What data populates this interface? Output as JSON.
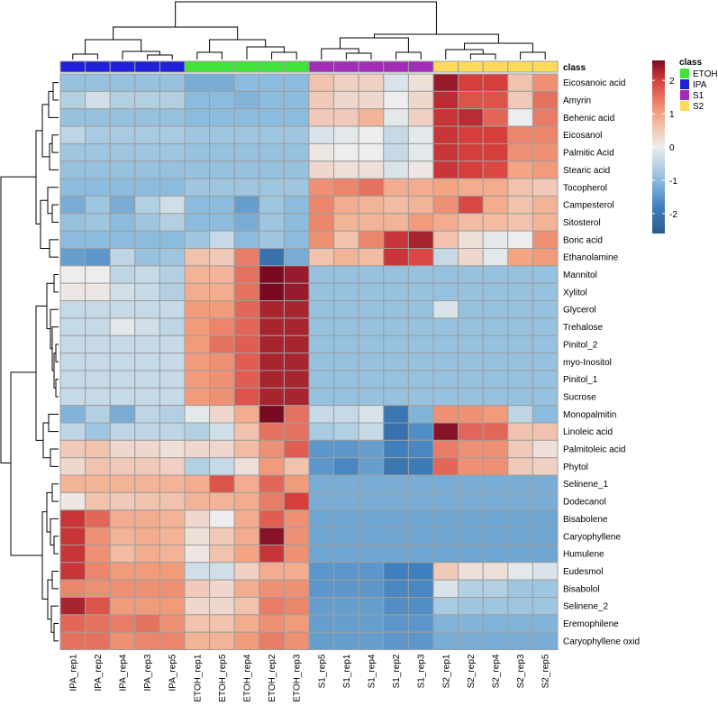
{
  "chart_data": {
    "type": "heatmap",
    "title": "",
    "columns": [
      "IPA_rep1",
      "IPA_rep2",
      "IPA_rep4",
      "IPA_rep3",
      "IPA_rep5",
      "ETOH_rep1",
      "ETOH_rep5",
      "ETOH_rep4",
      "ETOH_rep2",
      "ETOH_rep3",
      "S1_rep5",
      "S1_rep1",
      "S1_rep4",
      "S1_rep2",
      "S1_rep3",
      "S2_rep1",
      "S2_rep2",
      "S2_rep4",
      "S2_rep3",
      "S2_rep5"
    ],
    "rows": [
      "Eicosanoic acid",
      "Amyrin",
      "Behenic acid",
      "Eicosanol",
      "Palmitic Acid",
      "Stearic acid",
      "Tocopherol",
      "Campesterol",
      "Sitosterol",
      "Boric acid",
      "Ethanolamine",
      "Mannitol",
      "Xylitol",
      "Glycerol",
      "Trehalose",
      "Pinitol_2",
      "myo-Inositol",
      "Pinitol_1",
      "Sucrose",
      "Monopalmitin",
      "Linoleic acid",
      "Palmitoleic acid",
      "Phytol",
      "Selinene_1",
      "Dodecanol",
      "Bisabolene",
      "Caryophyllene",
      "Humulene",
      "Eudesmol",
      "Bisabolol",
      "Selinene_2",
      "Eremophilene",
      "Caryophyllene oxid"
    ],
    "column_class": [
      "IPA",
      "IPA",
      "IPA",
      "IPA",
      "IPA",
      "ETOH",
      "ETOH",
      "ETOH",
      "ETOH",
      "ETOH",
      "S1",
      "S1",
      "S1",
      "S1",
      "S1",
      "S2",
      "S2",
      "S2",
      "S2",
      "S2"
    ],
    "class_annotation_label": "class",
    "class_legend": {
      "title": "class",
      "items": [
        {
          "name": "ETOH",
          "color": "#3FE33A"
        },
        {
          "name": "IPA",
          "color": "#2020D8"
        },
        {
          "name": "S1",
          "color": "#A22CB8"
        },
        {
          "name": "S2",
          "color": "#FDDA5C"
        }
      ]
    },
    "color_scale": {
      "ticks": [
        2,
        1,
        0,
        -1,
        -2
      ],
      "range": [
        -2.6,
        2.6
      ],
      "low_color": "#2B5A8E",
      "mid_color": "#EDEDED",
      "high_color": "#7A0A22"
    },
    "values": [
      [
        -0.9,
        -0.9,
        -0.9,
        -0.9,
        -0.9,
        -1.2,
        -1.2,
        -1.0,
        -1.0,
        -1.0,
        0.6,
        0.4,
        0.4,
        -0.2,
        0.2,
        2.4,
        2.0,
        2.0,
        0.6,
        1.2
      ],
      [
        -0.6,
        -0.3,
        -0.6,
        -0.6,
        -0.6,
        -1.0,
        -1.0,
        -1.1,
        -1.0,
        -1.0,
        0.5,
        0.3,
        0.3,
        0.0,
        0.3,
        2.2,
        1.8,
        1.8,
        0.5,
        1.5
      ],
      [
        -0.9,
        -0.9,
        -0.9,
        -0.9,
        -0.9,
        -1.0,
        -1.0,
        -1.0,
        -1.0,
        -1.0,
        0.5,
        0.5,
        0.8,
        -0.1,
        0.4,
        2.1,
        2.2,
        1.6,
        0.0,
        1.4
      ],
      [
        -0.5,
        -0.7,
        -0.7,
        -0.7,
        -0.7,
        -0.8,
        -0.8,
        -0.8,
        -0.8,
        -0.8,
        -0.2,
        -0.1,
        0.0,
        -0.4,
        -0.1,
        2.1,
        2.0,
        2.0,
        1.3,
        1.3
      ],
      [
        -0.8,
        -0.8,
        -0.8,
        -0.8,
        -0.8,
        -0.9,
        -0.9,
        -0.9,
        -0.9,
        -0.9,
        0.1,
        0.0,
        0.0,
        -0.4,
        -0.1,
        2.1,
        2.0,
        2.0,
        1.2,
        1.2
      ],
      [
        -0.9,
        -0.9,
        -0.9,
        -0.9,
        -0.9,
        -0.9,
        -0.9,
        -0.9,
        -0.9,
        -0.9,
        0.3,
        0.2,
        0.2,
        -0.2,
        0.1,
        2.1,
        2.0,
        1.9,
        1.0,
        1.1
      ],
      [
        -1.0,
        -1.0,
        -1.0,
        -1.0,
        -1.0,
        -0.8,
        -0.8,
        -0.8,
        -0.8,
        -0.8,
        1.2,
        1.3,
        1.5,
        0.9,
        0.9,
        1.0,
        0.9,
        0.9,
        0.6,
        0.5
      ],
      [
        -1.2,
        -0.8,
        -1.2,
        -0.6,
        -0.3,
        -1.0,
        -1.0,
        -1.4,
        -0.8,
        -1.0,
        1.3,
        0.9,
        0.8,
        0.7,
        0.8,
        1.2,
        1.9,
        0.9,
        0.6,
        0.8
      ],
      [
        -0.9,
        -0.8,
        -1.0,
        -0.8,
        -0.6,
        -1.0,
        -1.0,
        -1.2,
        -0.8,
        -1.0,
        1.3,
        0.8,
        0.8,
        0.8,
        1.1,
        0.9,
        0.7,
        0.7,
        0.6,
        0.8
      ],
      [
        -1.0,
        -1.0,
        -1.0,
        -1.0,
        -1.0,
        -0.8,
        -0.4,
        -1.0,
        -0.8,
        -1.0,
        1.2,
        0.6,
        1.3,
        2.1,
        2.3,
        0.6,
        0.2,
        -0.1,
        0.0,
        1.2
      ],
      [
        -1.4,
        -1.5,
        -0.5,
        -0.9,
        -0.8,
        0.6,
        0.5,
        1.4,
        -2.1,
        -1.2,
        0.6,
        0.8,
        0.7,
        2.1,
        1.9,
        -0.4,
        0.3,
        -0.1,
        1.0,
        1.1
      ],
      [
        0.0,
        0.0,
        -0.5,
        -0.4,
        -0.6,
        0.8,
        0.8,
        1.5,
        2.6,
        2.4,
        -0.9,
        -0.9,
        -0.9,
        -0.9,
        -0.9,
        -0.9,
        -0.9,
        -0.9,
        -0.9,
        -0.9
      ],
      [
        0.1,
        0.1,
        -0.3,
        -0.4,
        -0.6,
        0.9,
        0.9,
        1.5,
        2.6,
        2.4,
        -0.9,
        -0.9,
        -0.9,
        -0.9,
        -0.9,
        -0.9,
        -0.9,
        -0.9,
        -0.9,
        -0.9
      ],
      [
        -0.4,
        -0.4,
        -0.4,
        -0.4,
        -0.4,
        1.1,
        1.1,
        1.6,
        2.3,
        2.3,
        -0.9,
        -0.9,
        -0.9,
        -0.9,
        -0.9,
        -0.2,
        -0.9,
        -0.9,
        -0.9,
        -0.9
      ],
      [
        -0.4,
        -0.4,
        -0.1,
        -0.3,
        -0.5,
        1.1,
        1.3,
        1.6,
        2.3,
        2.3,
        -0.9,
        -0.9,
        -0.9,
        -0.9,
        -0.9,
        -0.9,
        -0.9,
        -0.9,
        -0.9,
        -0.9
      ],
      [
        -0.4,
        -0.4,
        -0.4,
        -0.4,
        -0.4,
        1.1,
        1.5,
        1.7,
        2.3,
        2.3,
        -0.9,
        -0.9,
        -0.9,
        -0.9,
        -0.9,
        -0.9,
        -0.9,
        -0.9,
        -0.9,
        -0.9
      ],
      [
        -0.4,
        -0.4,
        -0.4,
        -0.4,
        -0.4,
        1.1,
        1.2,
        1.7,
        2.3,
        2.3,
        -0.9,
        -0.9,
        -0.9,
        -0.9,
        -0.9,
        -0.9,
        -0.9,
        -0.9,
        -0.9,
        -0.9
      ],
      [
        -0.4,
        -0.4,
        -0.4,
        -0.4,
        -0.4,
        1.1,
        1.2,
        1.7,
        2.3,
        2.3,
        -0.9,
        -0.9,
        -0.9,
        -0.9,
        -0.9,
        -0.9,
        -0.9,
        -0.9,
        -0.9,
        -0.9
      ],
      [
        -0.4,
        -0.4,
        -0.4,
        -0.4,
        -0.4,
        1.1,
        1.2,
        1.8,
        2.3,
        2.3,
        -0.9,
        -0.9,
        -0.9,
        -0.9,
        -0.9,
        -0.9,
        -0.9,
        -0.9,
        -0.9,
        -0.9
      ],
      [
        -1.1,
        -0.6,
        -1.2,
        -0.5,
        -0.6,
        -0.1,
        0.3,
        0.9,
        2.6,
        1.5,
        -0.4,
        -0.4,
        -0.2,
        -2.0,
        -1.1,
        1.2,
        1.2,
        1.1,
        -0.5,
        -1.0
      ],
      [
        -0.5,
        -0.8,
        -0.5,
        -0.5,
        -0.5,
        -0.6,
        -0.3,
        0.6,
        1.5,
        1.5,
        -0.7,
        -0.6,
        -0.4,
        -2.1,
        -1.6,
        2.5,
        1.6,
        1.6,
        0.6,
        0.6
      ],
      [
        0.5,
        0.6,
        0.3,
        0.3,
        0.2,
        0.3,
        0.3,
        0.7,
        1.2,
        1.7,
        -1.5,
        -1.5,
        -1.4,
        -1.8,
        -1.7,
        1.4,
        1.2,
        1.2,
        0.5,
        0.2
      ],
      [
        0.3,
        0.6,
        0.5,
        0.5,
        0.4,
        -0.6,
        -0.4,
        0.2,
        1.1,
        0.6,
        -1.5,
        -1.7,
        -1.4,
        -2.0,
        -1.9,
        1.6,
        1.2,
        1.2,
        0.5,
        0.4
      ],
      [
        0.8,
        0.8,
        0.8,
        0.8,
        0.8,
        0.9,
        1.8,
        0.9,
        1.6,
        1.1,
        -1.2,
        -1.2,
        -1.2,
        -1.2,
        -1.2,
        -1.2,
        -1.2,
        -1.2,
        -1.2,
        -1.2
      ],
      [
        0.1,
        0.6,
        0.5,
        0.6,
        0.6,
        0.8,
        0.8,
        0.9,
        1.4,
        2.0,
        -1.2,
        -1.2,
        -1.2,
        -1.2,
        -1.2,
        -1.2,
        -1.2,
        -1.2,
        -1.2,
        -1.2
      ],
      [
        2.1,
        1.6,
        0.9,
        0.9,
        0.8,
        0.3,
        0.0,
        0.9,
        1.7,
        1.2,
        -1.3,
        -1.3,
        -1.3,
        -1.3,
        -1.3,
        -1.3,
        -1.3,
        -1.3,
        -1.3,
        -1.3
      ],
      [
        2.1,
        1.2,
        0.8,
        0.9,
        0.8,
        0.2,
        0.5,
        0.9,
        2.5,
        1.2,
        -1.3,
        -1.3,
        -1.3,
        -1.3,
        -1.3,
        -1.3,
        -1.3,
        -1.3,
        -1.3,
        -1.3
      ],
      [
        2.1,
        1.2,
        0.7,
        0.9,
        0.8,
        0.1,
        0.6,
        1.0,
        2.1,
        1.2,
        -1.3,
        -1.3,
        -1.3,
        -1.3,
        -1.3,
        -1.3,
        -1.3,
        -1.3,
        -1.3,
        -1.3
      ],
      [
        2.1,
        1.3,
        1.1,
        1.1,
        1.1,
        -0.3,
        -0.3,
        0.4,
        0.9,
        0.9,
        -1.5,
        -1.5,
        -1.5,
        -1.8,
        -1.8,
        0.5,
        0.2,
        0.2,
        -0.1,
        -0.2
      ],
      [
        1.3,
        1.2,
        1.2,
        1.2,
        1.2,
        0.5,
        0.3,
        0.9,
        1.2,
        1.2,
        -1.5,
        -1.5,
        -1.5,
        -1.7,
        -1.7,
        -0.2,
        -0.6,
        -0.6,
        -0.8,
        -0.8
      ],
      [
        2.3,
        1.8,
        1.1,
        1.1,
        1.1,
        0.3,
        0.3,
        0.6,
        1.4,
        1.3,
        -1.4,
        -1.4,
        -1.4,
        -1.6,
        -1.6,
        -0.7,
        -0.8,
        -0.8,
        -0.8,
        -0.8
      ],
      [
        1.6,
        1.5,
        1.4,
        1.5,
        1.2,
        0.6,
        0.6,
        0.9,
        1.2,
        1.1,
        -1.4,
        -1.4,
        -1.4,
        -1.5,
        -1.5,
        -1.1,
        -1.1,
        -1.1,
        -1.1,
        -1.1
      ],
      [
        1.5,
        1.5,
        1.2,
        1.3,
        1.3,
        0.8,
        0.8,
        1.1,
        1.4,
        1.2,
        -1.4,
        -1.4,
        -1.4,
        -1.5,
        -1.5,
        -1.2,
        -1.2,
        -1.2,
        -1.2,
        -1.2
      ]
    ],
    "grid": true,
    "legend_position": "right"
  }
}
